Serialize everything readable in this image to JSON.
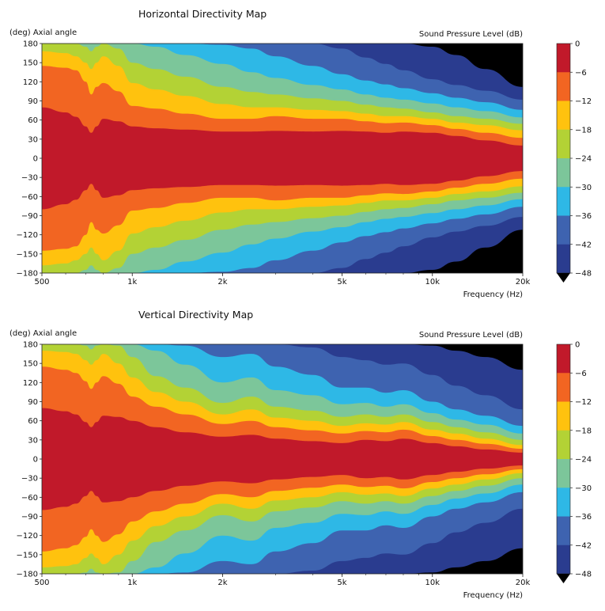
{
  "chart_data": [
    {
      "type": "heatmap",
      "title": "Horizontal Directivity Map",
      "ylabel": "(deg) Axial angle",
      "xlabel": "Frequency (Hz)",
      "colorbar_label": "Sound Pressure Level (dB)",
      "x_scale": "log",
      "xlim": [
        500,
        20000
      ],
      "ylim": [
        -180,
        180
      ],
      "x_ticks": [
        500,
        1000,
        2000,
        5000,
        10000,
        20000
      ],
      "x_tick_labels": [
        "500",
        "1k",
        "2k",
        "5k",
        "10k",
        "20k"
      ],
      "y_ticks": [
        180,
        150,
        120,
        90,
        60,
        30,
        0,
        -30,
        -60,
        -90,
        -120,
        -150,
        -180
      ],
      "y_tick_labels": [
        "180",
        "150",
        "120",
        "90",
        "60",
        "30",
        "0",
        "−30",
        "−60",
        "−90",
        "−120",
        "−150",
        "−180"
      ],
      "levels": [
        0,
        -6,
        -12,
        -18,
        -24,
        -30,
        -36,
        -42,
        -48
      ],
      "level_labels": [
        "0",
        "−6",
        "−12",
        "−18",
        "−24",
        "−30",
        "−36",
        "−42",
        "−48"
      ],
      "colors": [
        "#c1192a",
        "#f26522",
        "#ffc20e",
        "#b3d235",
        "#7cc69a",
        "#2eb8e6",
        "#3e63b0",
        "#2a3c8f",
        "#000000"
      ],
      "contour_widths_deg": {
        "frequencies": [
          500,
          600,
          650,
          700,
          730,
          760,
          800,
          900,
          1000,
          1200,
          1500,
          2000,
          2500,
          3000,
          4000,
          5000,
          6000,
          7000,
          8000,
          10000,
          12000,
          15000,
          20000
        ],
        "-6": [
          80,
          72,
          65,
          50,
          40,
          50,
          62,
          58,
          50,
          47,
          45,
          42,
          42,
          43,
          42,
          43,
          42,
          40,
          42,
          40,
          35,
          28,
          20
        ],
        "-12": [
          145,
          142,
          138,
          120,
          100,
          112,
          118,
          105,
          82,
          78,
          70,
          62,
          62,
          66,
          62,
          62,
          58,
          55,
          56,
          52,
          46,
          40,
          32
        ],
        "-18": [
          168,
          165,
          160,
          150,
          140,
          150,
          160,
          145,
          118,
          108,
          98,
          85,
          80,
          80,
          76,
          74,
          70,
          66,
          66,
          62,
          56,
          52,
          44
        ],
        "-24": [
          180,
          180,
          180,
          175,
          168,
          175,
          180,
          172,
          150,
          140,
          128,
          112,
          104,
          100,
          94,
          90,
          84,
          80,
          78,
          72,
          66,
          62,
          54
        ],
        "-30": [
          180,
          180,
          180,
          180,
          180,
          180,
          180,
          180,
          180,
          175,
          162,
          148,
          135,
          126,
          115,
          108,
          100,
          95,
          92,
          86,
          80,
          74,
          64
        ],
        "-36": [
          180,
          180,
          180,
          180,
          180,
          180,
          180,
          180,
          180,
          180,
          180,
          178,
          172,
          160,
          145,
          132,
          122,
          116,
          110,
          102,
          95,
          88,
          76
        ],
        "-42": [
          180,
          180,
          180,
          180,
          180,
          180,
          180,
          180,
          180,
          180,
          180,
          180,
          180,
          180,
          180,
          172,
          158,
          148,
          138,
          124,
          115,
          106,
          92
        ],
        "-48": [
          180,
          180,
          180,
          180,
          180,
          180,
          180,
          180,
          180,
          180,
          180,
          180,
          180,
          180,
          180,
          180,
          180,
          180,
          180,
          175,
          162,
          140,
          112
        ]
      }
    },
    {
      "type": "heatmap",
      "title": "Vertical Directivity Map",
      "ylabel": "(deg) Axial angle",
      "xlabel": "Frequency (Hz)",
      "colorbar_label": "Sound Pressure Level (dB)",
      "x_scale": "log",
      "xlim": [
        500,
        20000
      ],
      "ylim": [
        -180,
        180
      ],
      "x_ticks": [
        500,
        1000,
        2000,
        5000,
        10000,
        20000
      ],
      "x_tick_labels": [
        "500",
        "1k",
        "2k",
        "5k",
        "10k",
        "20k"
      ],
      "y_ticks": [
        180,
        150,
        120,
        90,
        60,
        30,
        0,
        -30,
        -60,
        -90,
        -120,
        -150,
        -180
      ],
      "y_tick_labels": [
        "180",
        "150",
        "120",
        "90",
        "60",
        "30",
        "0",
        "−30",
        "−60",
        "−90",
        "−120",
        "−150",
        "−180"
      ],
      "levels": [
        0,
        -6,
        -12,
        -18,
        -24,
        -30,
        -36,
        -42,
        -48
      ],
      "level_labels": [
        "0",
        "−6",
        "−12",
        "−18",
        "−24",
        "−30",
        "−36",
        "−42",
        "−48"
      ],
      "colors": [
        "#c1192a",
        "#f26522",
        "#ffc20e",
        "#b3d235",
        "#7cc69a",
        "#2eb8e6",
        "#3e63b0",
        "#2a3c8f",
        "#000000"
      ],
      "contour_widths_deg": {
        "frequencies": [
          500,
          600,
          650,
          700,
          730,
          760,
          800,
          900,
          1000,
          1200,
          1500,
          2000,
          2500,
          3000,
          4000,
          5000,
          6000,
          7000,
          8000,
          10000,
          12000,
          15000,
          20000
        ],
        "-6": [
          80,
          75,
          70,
          58,
          50,
          58,
          68,
          66,
          60,
          50,
          42,
          35,
          38,
          32,
          28,
          25,
          30,
          28,
          32,
          25,
          20,
          15,
          10
        ],
        "-12": [
          145,
          140,
          135,
          122,
          110,
          120,
          130,
          118,
          98,
          82,
          70,
          55,
          60,
          50,
          45,
          40,
          44,
          42,
          46,
          36,
          30,
          24,
          16
        ],
        "-18": [
          170,
          168,
          165,
          155,
          148,
          155,
          165,
          150,
          128,
          105,
          90,
          70,
          78,
          65,
          60,
          52,
          56,
          54,
          58,
          46,
          40,
          32,
          22
        ],
        "-24": [
          180,
          180,
          180,
          178,
          172,
          178,
          180,
          178,
          160,
          130,
          112,
          88,
          98,
          82,
          76,
          66,
          70,
          66,
          70,
          58,
          50,
          42,
          30
        ],
        "-30": [
          180,
          180,
          180,
          180,
          180,
          180,
          180,
          180,
          180,
          170,
          148,
          120,
          128,
          108,
          100,
          86,
          88,
          82,
          86,
          72,
          62,
          54,
          40
        ],
        "-36": [
          180,
          180,
          180,
          180,
          180,
          180,
          180,
          180,
          180,
          180,
          178,
          160,
          165,
          145,
          132,
          112,
          112,
          104,
          108,
          90,
          78,
          68,
          52
        ],
        "-42": [
          180,
          180,
          180,
          180,
          180,
          180,
          180,
          180,
          180,
          180,
          180,
          180,
          180,
          180,
          175,
          160,
          155,
          148,
          150,
          132,
          115,
          100,
          78
        ],
        "-48": [
          180,
          180,
          180,
          180,
          180,
          180,
          180,
          180,
          180,
          180,
          180,
          180,
          180,
          180,
          180,
          180,
          180,
          180,
          180,
          178,
          170,
          160,
          140
        ]
      }
    }
  ]
}
